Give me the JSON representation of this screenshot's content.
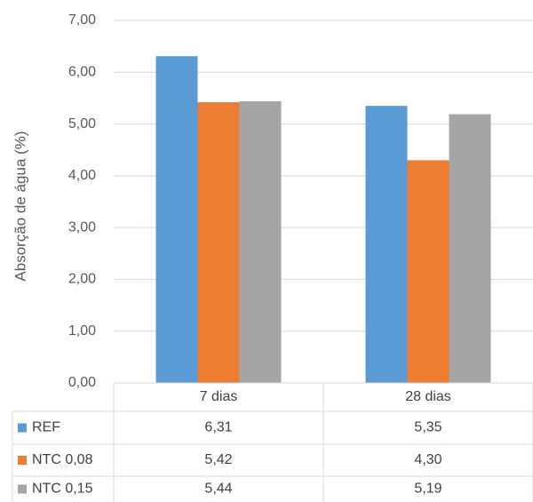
{
  "chart_data": {
    "type": "bar",
    "categories": [
      "7 dias",
      "28 dias"
    ],
    "series": [
      {
        "name": "REF",
        "values": [
          6.31,
          5.35
        ],
        "color": "#5B9BD5"
      },
      {
        "name": "NTC 0,08",
        "values": [
          5.42,
          4.3
        ],
        "color": "#ED7D31"
      },
      {
        "name": "NTC 0,15",
        "values": [
          5.44,
          5.19
        ],
        "color": "#A5A5A5"
      }
    ],
    "value_labels": [
      [
        "6,31",
        "5,35"
      ],
      [
        "5,42",
        "4,30"
      ],
      [
        "5,44",
        "5,19"
      ]
    ],
    "ylabel": "Absorção de água (%)",
    "ylim": [
      0,
      7
    ],
    "yticks": [
      0,
      1,
      2,
      3,
      4,
      5,
      6,
      7
    ],
    "ytick_labels": [
      "0,00",
      "1,00",
      "2,00",
      "3,00",
      "4,00",
      "5,00",
      "6,00",
      "7,00"
    ],
    "grid": true,
    "legend": "data-table",
    "gridline_color": "#D9D9D9"
  }
}
